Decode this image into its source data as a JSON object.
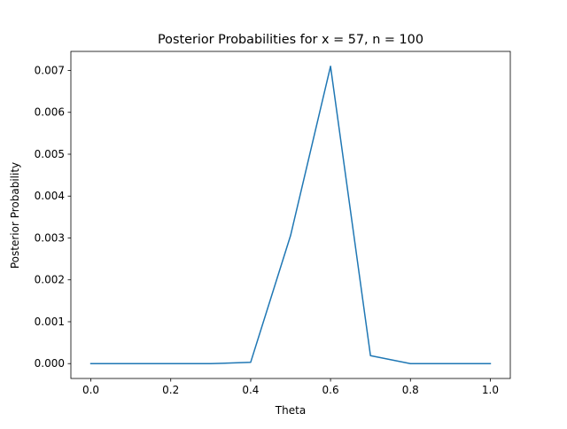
{
  "chart_data": {
    "type": "line",
    "title": "Posterior Probabilities for x = 57, n = 100",
    "xlabel": "Theta",
    "ylabel": "Posterior Probability",
    "xlim": [
      -0.05,
      1.05
    ],
    "ylim": [
      -0.000355,
      0.007455
    ],
    "xticks": [
      0.0,
      0.2,
      0.4,
      0.6,
      0.8,
      1.0
    ],
    "xtick_labels": [
      "0.0",
      "0.2",
      "0.4",
      "0.6",
      "0.8",
      "1.0"
    ],
    "yticks": [
      0.0,
      0.001,
      0.002,
      0.003,
      0.004,
      0.005,
      0.006,
      0.007
    ],
    "ytick_labels": [
      "0.000",
      "0.001",
      "0.002",
      "0.003",
      "0.004",
      "0.005",
      "0.006",
      "0.007"
    ],
    "grid": false,
    "legend": false,
    "series": [
      {
        "color": "#1f77b4",
        "x": [
          0.0,
          0.1,
          0.2,
          0.3,
          0.4,
          0.5,
          0.6,
          0.7,
          0.8,
          0.9,
          1.0
        ],
        "y": [
          0.0,
          0.0,
          0.0,
          0.0,
          3e-05,
          0.00306,
          0.0071,
          0.00019,
          0.0,
          0.0,
          0.0
        ]
      }
    ]
  }
}
